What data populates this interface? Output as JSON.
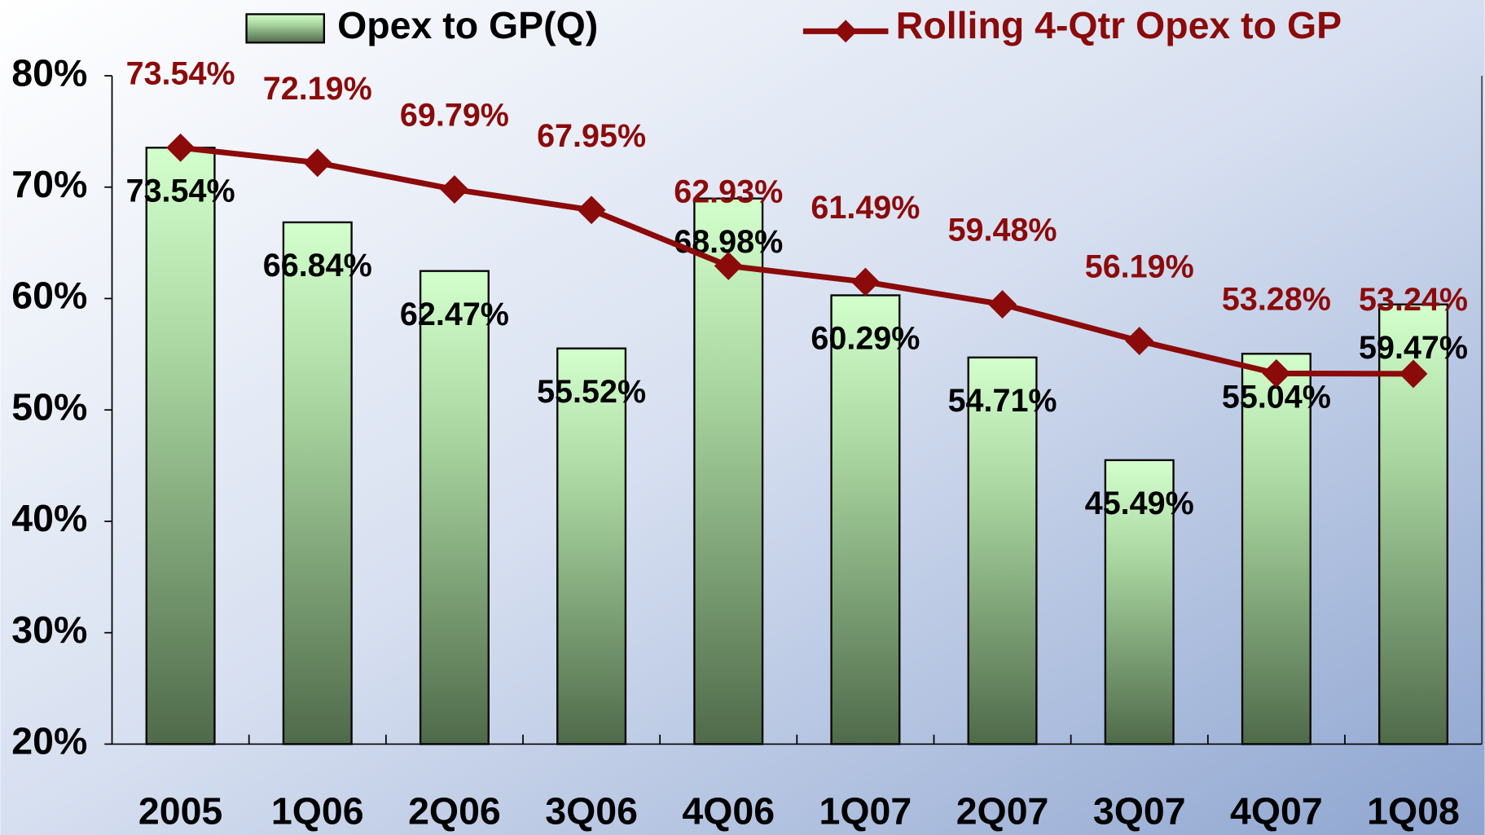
{
  "chart_data": {
    "type": "bar",
    "categories": [
      "2005",
      "1Q06",
      "2Q06",
      "3Q06",
      "4Q06",
      "1Q07",
      "2Q07",
      "3Q07",
      "4Q07",
      "1Q08"
    ],
    "series": [
      {
        "name": "Opex to GP(Q)",
        "type": "bar",
        "color": "#c8f5c0",
        "values": [
          73.54,
          66.84,
          62.47,
          55.52,
          68.98,
          60.29,
          54.71,
          45.49,
          55.04,
          59.47
        ],
        "value_labels": [
          "73.54%",
          "66.84%",
          "62.47%",
          "55.52%",
          "68.98%",
          "60.29%",
          "54.71%",
          "45.49%",
          "55.04%",
          "59.47%"
        ]
      },
      {
        "name": "Rolling 4-Qtr Opex to GP",
        "type": "line",
        "color": "#8b0a0a",
        "values": [
          73.54,
          72.19,
          69.79,
          67.95,
          62.93,
          61.49,
          59.48,
          56.19,
          53.28,
          53.24
        ],
        "value_labels": [
          "73.54%",
          "72.19%",
          "69.79%",
          "67.95%",
          "62.93%",
          "61.49%",
          "59.48%",
          "56.19%",
          "53.28%",
          "53.24%"
        ]
      }
    ],
    "ylim": [
      20,
      80
    ],
    "yticks": [
      {
        "value": 20,
        "label": "20%"
      },
      {
        "value": 30,
        "label": "30%"
      },
      {
        "value": 40,
        "label": "40%"
      },
      {
        "value": 50,
        "label": "50%"
      },
      {
        "value": 60,
        "label": "60%"
      },
      {
        "value": 70,
        "label": "70%"
      },
      {
        "value": 80,
        "label": "80%"
      }
    ],
    "grid": false,
    "legend": "top"
  }
}
